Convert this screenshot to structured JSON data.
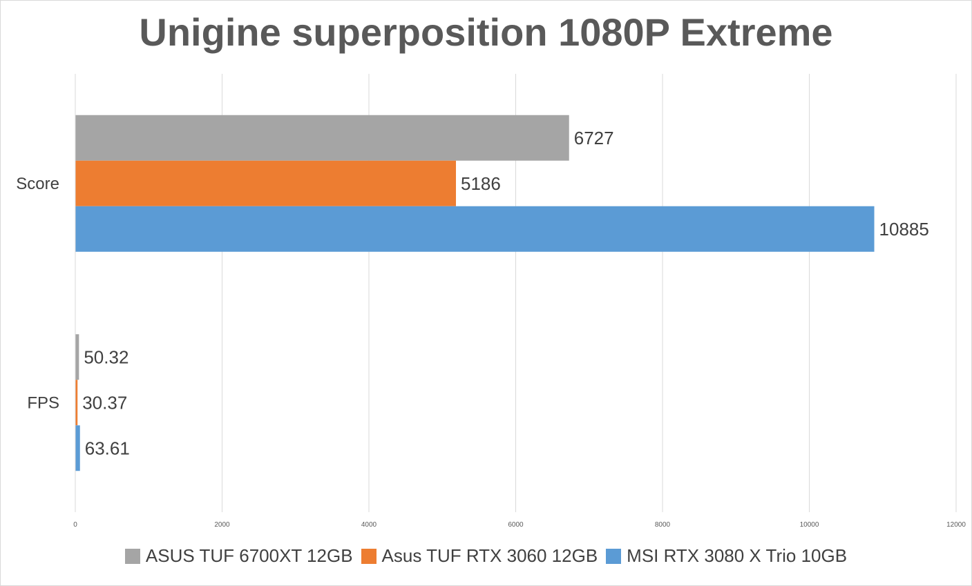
{
  "chart_data": {
    "type": "bar",
    "orientation": "horizontal",
    "title": "Unigine superposition 1080P Extreme",
    "categories": [
      "Score",
      "FPS"
    ],
    "series": [
      {
        "name": "ASUS TUF 6700XT 12GB",
        "color": "#a5a5a5",
        "values": [
          6727,
          50.32
        ],
        "labels": [
          "6727",
          "50.32"
        ]
      },
      {
        "name": "Asus TUF RTX 3060 12GB",
        "color": "#ed7d31",
        "values": [
          5186,
          30.37
        ],
        "labels": [
          "5186",
          "30.37"
        ]
      },
      {
        "name": "MSI RTX 3080 X Trio 10GB",
        "color": "#5b9bd5",
        "values": [
          10885,
          63.61
        ],
        "labels": [
          "10885",
          "63.61"
        ]
      }
    ],
    "xlim": [
      0,
      12000
    ],
    "xticks": [
      0,
      2000,
      4000,
      6000,
      8000,
      10000,
      12000
    ],
    "xtick_labels": [
      "0",
      "2000",
      "4000",
      "6000",
      "8000",
      "10000",
      "12000"
    ],
    "grid": true,
    "legend_position": "bottom"
  }
}
